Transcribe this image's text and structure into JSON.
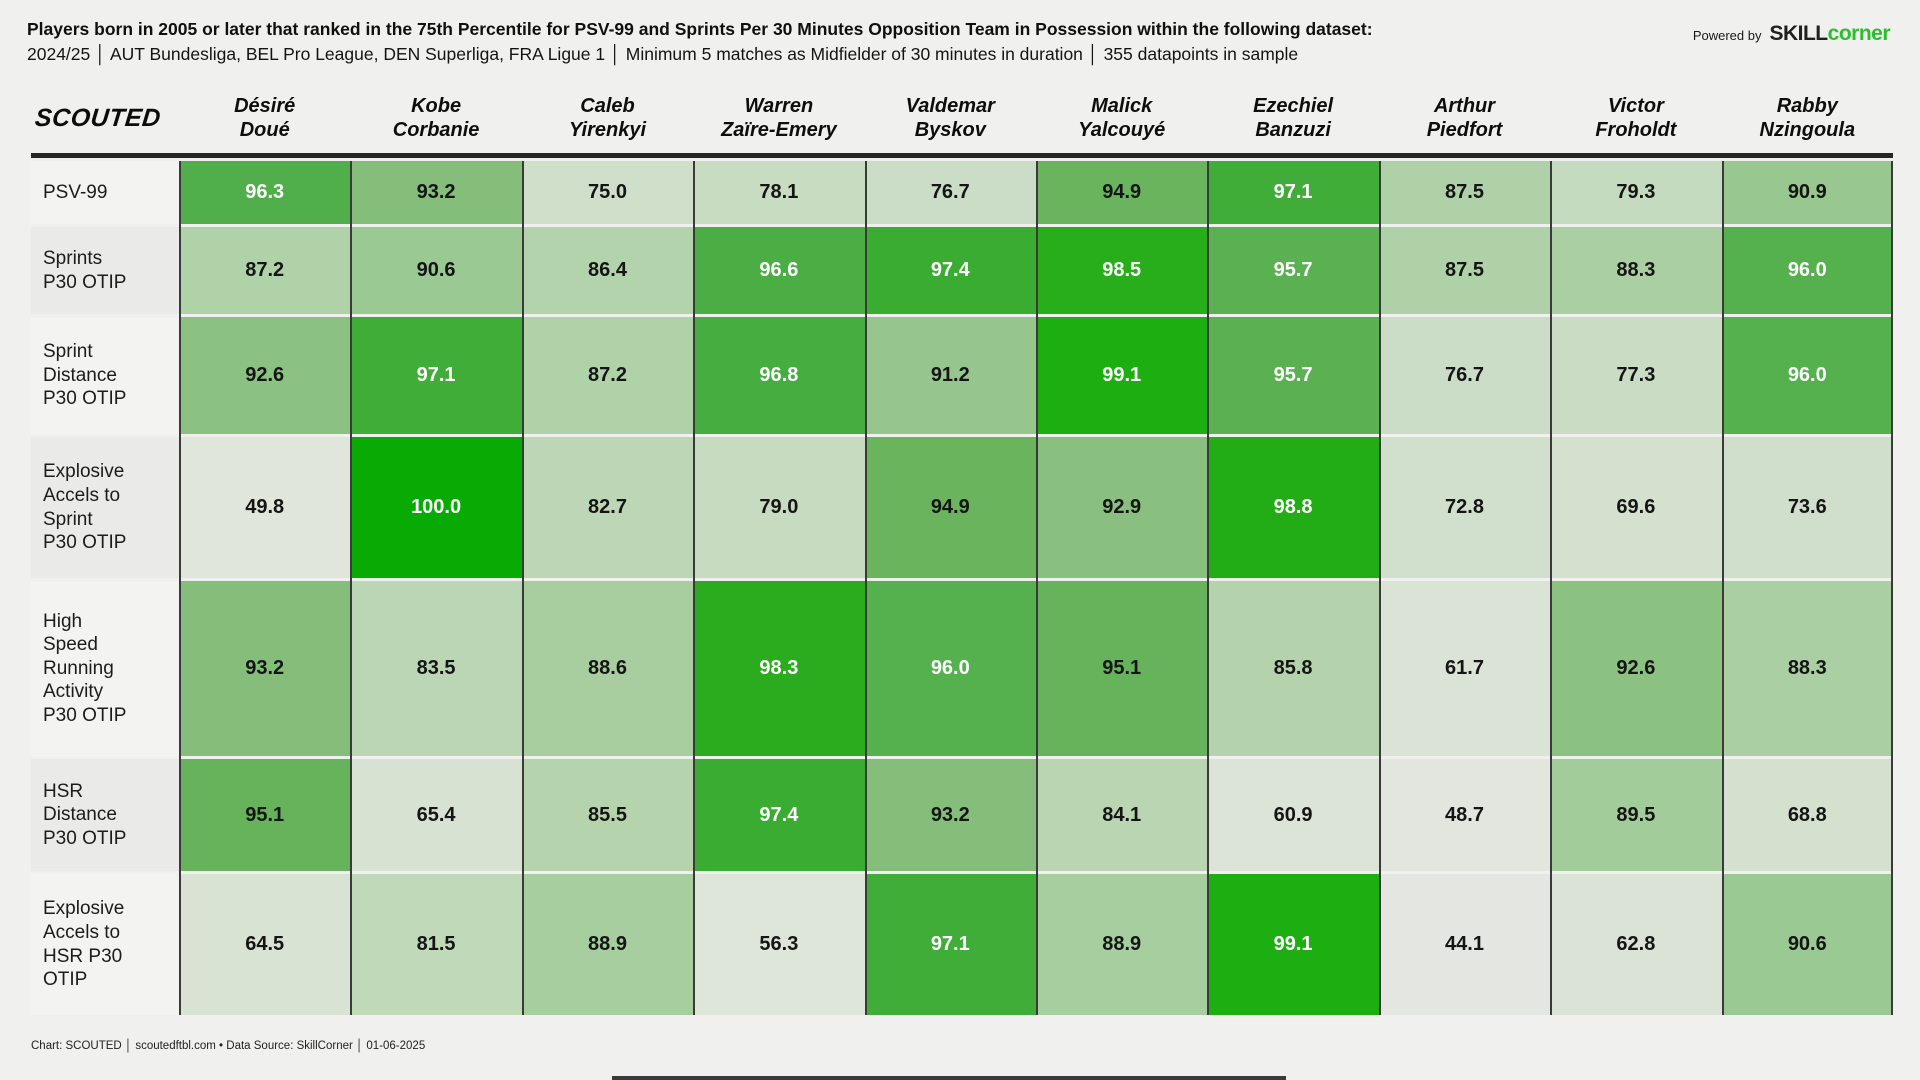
{
  "header": {
    "title_line1": "Players born in 2005 or later that ranked in the 75th Percentile for PSV-99 and Sprints Per 30 Minutes Opposition Team in Possession within the following dataset:",
    "title_line2": "2024/25 │ AUT Bundesliga, BEL Pro League, DEN Superliga, FRA Ligue 1 │ Minimum 5 matches as Midfielder of 30 minutes in duration │ 355 datapoints in sample",
    "powered_by_label": "Powered by",
    "brand_skill": "SKILL",
    "brand_corner": "corner"
  },
  "table_logo": "SCOUTED",
  "chart_data": {
    "type": "heatmap",
    "title": "Players born in 2005 or later that ranked in the 75th Percentile for PSV-99 and Sprints Per 30 Minutes Opposition Team in Possession",
    "columns": [
      "Désiré\nDoué",
      "Kobe\nCorbanie",
      "Caleb\nYirenkyi",
      "Warren\nZaïre-Emery",
      "Valdemar\nByskov",
      "Malick\nYalcouyé",
      "Ezechiel\nBanzuzi",
      "Arthur\nPiedfort",
      "Victor\nFroholdt",
      "Rabby\nNzingoula"
    ],
    "rows": [
      "PSV-99",
      "Sprints\nP30 OTIP",
      "Sprint\nDistance\nP30 OTIP",
      "Explosive\nAccels to\nSprint\nP30 OTIP",
      "High\nSpeed\nRunning\nActivity\nP30 OTIP",
      "HSR\nDistance\nP30 OTIP",
      "Explosive\nAccels to\nHSR P30\nOTIP"
    ],
    "values": [
      [
        96.3,
        93.2,
        75.0,
        78.1,
        76.7,
        94.9,
        97.1,
        87.5,
        79.3,
        90.9
      ],
      [
        87.2,
        90.6,
        86.4,
        96.6,
        97.4,
        98.5,
        95.7,
        87.5,
        88.3,
        96.0
      ],
      [
        92.6,
        97.1,
        87.2,
        96.8,
        91.2,
        99.1,
        95.7,
        76.7,
        77.3,
        96.0
      ],
      [
        49.8,
        100.0,
        82.7,
        79.0,
        94.9,
        92.9,
        98.8,
        72.8,
        69.6,
        73.6
      ],
      [
        93.2,
        83.5,
        88.6,
        98.3,
        96.0,
        95.1,
        85.8,
        61.7,
        92.6,
        88.3
      ],
      [
        95.1,
        65.4,
        85.5,
        97.4,
        93.2,
        84.1,
        60.9,
        48.7,
        89.5,
        68.8
      ],
      [
        64.5,
        81.5,
        88.9,
        56.3,
        97.1,
        88.9,
        99.1,
        44.1,
        62.8,
        90.6
      ]
    ],
    "value_range": [
      44.1,
      100.0
    ],
    "colorscale_stops": [
      [
        44.0,
        "#e4e7e1"
      ],
      [
        60.0,
        "#dce4d7"
      ],
      [
        75.0,
        "#cfdfca"
      ],
      [
        82.0,
        "#bfd8b8"
      ],
      [
        87.0,
        "#b1d2aa"
      ],
      [
        90.0,
        "#a0cb98"
      ],
      [
        93.0,
        "#88bf7e"
      ],
      [
        95.0,
        "#68b35c"
      ],
      [
        96.5,
        "#4cae47"
      ],
      [
        98.0,
        "#30ab24"
      ],
      [
        99.0,
        "#1fae12"
      ],
      [
        100.0,
        "#08ab04"
      ]
    ],
    "white_text_threshold": 95.5
  },
  "colors": {
    "page_bg": "#f0f0ee",
    "brand_green": "#2dbe2d",
    "grid_line": "#3a3a3a",
    "header_rule": "#262626",
    "cell_text_dark": "#151515",
    "cell_text_light": "#ffffff",
    "row_label_bg_odd": "#f3f3f1",
    "row_label_bg_even": "#eaeae8"
  },
  "footer": {
    "text": "Chart: SCOUTED │ scoutedftbl.com • Data Source: SkillCorner │ 01-06-2025"
  }
}
